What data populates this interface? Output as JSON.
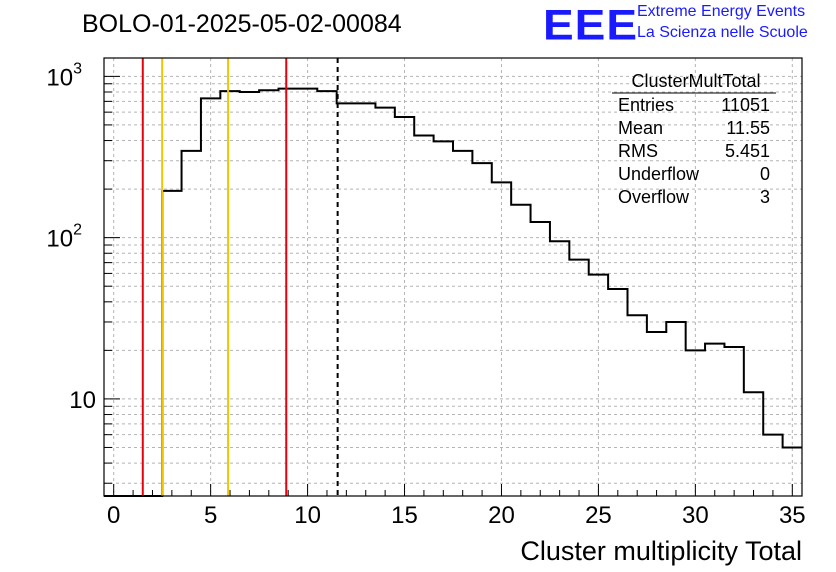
{
  "header": {
    "title": "BOLO-01-2025-05-02-00084",
    "logo_text": "EEE",
    "logo_line1": "Extreme Energy Events",
    "logo_line2": "La Scienza nelle Scuole",
    "logo_color": "#1a1aff"
  },
  "stats_box": {
    "name": "ClusterMultTotal",
    "rows": [
      {
        "label": "Entries",
        "value": "11051"
      },
      {
        "label": "Mean",
        "value": "11.55"
      },
      {
        "label": "RMS",
        "value": "5.451"
      },
      {
        "label": "Underflow",
        "value": "0"
      },
      {
        "label": "Overflow",
        "value": "3"
      }
    ]
  },
  "chart_data": {
    "type": "histogram",
    "xlabel": "Cluster multiplicity Total",
    "ylabel": "",
    "xlim": [
      -0.5,
      35.5
    ],
    "ylim": [
      2.5,
      1300
    ],
    "y_scale": "log",
    "grid": true,
    "x_ticks": [
      0,
      5,
      10,
      15,
      20,
      25,
      30,
      35
    ],
    "y_tick_labels": [
      {
        "value": 10,
        "label": "10"
      },
      {
        "value": 100,
        "label": "10",
        "exp": "2"
      },
      {
        "value": 1000,
        "label": "10",
        "exp": "3"
      }
    ],
    "bins": [
      {
        "x0": -0.5,
        "x1": 2.5,
        "y": 0
      },
      {
        "x0": 2.5,
        "x1": 3.5,
        "y": 195
      },
      {
        "x0": 3.5,
        "x1": 4.5,
        "y": 345
      },
      {
        "x0": 4.5,
        "x1": 5.5,
        "y": 730
      },
      {
        "x0": 5.5,
        "x1": 6.5,
        "y": 810
      },
      {
        "x0": 6.5,
        "x1": 7.5,
        "y": 800
      },
      {
        "x0": 7.5,
        "x1": 8.5,
        "y": 820
      },
      {
        "x0": 8.5,
        "x1": 9.5,
        "y": 840
      },
      {
        "x0": 9.5,
        "x1": 10.5,
        "y": 840
      },
      {
        "x0": 10.5,
        "x1": 11.5,
        "y": 810
      },
      {
        "x0": 11.5,
        "x1": 12.5,
        "y": 680
      },
      {
        "x0": 12.5,
        "x1": 13.5,
        "y": 680
      },
      {
        "x0": 13.5,
        "x1": 14.5,
        "y": 640
      },
      {
        "x0": 14.5,
        "x1": 15.5,
        "y": 560
      },
      {
        "x0": 15.5,
        "x1": 16.5,
        "y": 430
      },
      {
        "x0": 16.5,
        "x1": 17.5,
        "y": 395
      },
      {
        "x0": 17.5,
        "x1": 18.5,
        "y": 345
      },
      {
        "x0": 18.5,
        "x1": 19.5,
        "y": 290
      },
      {
        "x0": 19.5,
        "x1": 20.5,
        "y": 220
      },
      {
        "x0": 20.5,
        "x1": 21.5,
        "y": 160
      },
      {
        "x0": 21.5,
        "x1": 22.5,
        "y": 125
      },
      {
        "x0": 22.5,
        "x1": 23.5,
        "y": 95
      },
      {
        "x0": 23.5,
        "x1": 24.5,
        "y": 73
      },
      {
        "x0": 24.5,
        "x1": 25.5,
        "y": 59
      },
      {
        "x0": 25.5,
        "x1": 26.5,
        "y": 48
      },
      {
        "x0": 26.5,
        "x1": 27.5,
        "y": 33
      },
      {
        "x0": 27.5,
        "x1": 28.5,
        "y": 26
      },
      {
        "x0": 28.5,
        "x1": 29.5,
        "y": 30
      },
      {
        "x0": 29.5,
        "x1": 30.5,
        "y": 20
      },
      {
        "x0": 30.5,
        "x1": 31.5,
        "y": 22
      },
      {
        "x0": 31.5,
        "x1": 32.5,
        "y": 21
      },
      {
        "x0": 32.5,
        "x1": 33.5,
        "y": 11
      },
      {
        "x0": 33.5,
        "x1": 34.5,
        "y": 6
      },
      {
        "x0": 34.5,
        "x1": 35.5,
        "y": 5
      }
    ],
    "vertical_lines": [
      {
        "x": 1.5,
        "color": "#e8000b",
        "style": "solid"
      },
      {
        "x": 2.5,
        "color": "#f2c500",
        "style": "solid"
      },
      {
        "x": 5.9,
        "color": "#f2c500",
        "style": "solid"
      },
      {
        "x": 8.9,
        "color": "#e8000b",
        "style": "solid"
      },
      {
        "x": 11.55,
        "color": "#000000",
        "style": "dashed"
      }
    ]
  }
}
